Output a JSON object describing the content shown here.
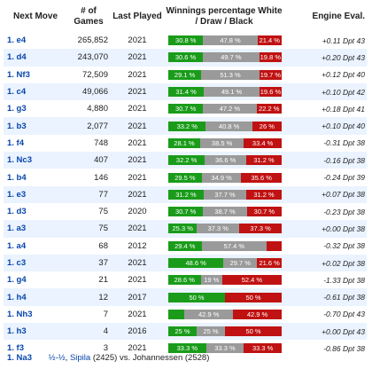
{
  "headers": {
    "move": "Next Move",
    "games": "# of Games",
    "last": "Last Played",
    "win": "Winnings percentage White / Draw / Black",
    "eval": "Engine Eval."
  },
  "colors": {
    "white": "#1a9c1a",
    "draw": "#9a9a9a",
    "black": "#c01212"
  },
  "rows": [
    {
      "move": "1. e4",
      "games": "265,852",
      "year": "2021",
      "w": 30.8,
      "d": 47.8,
      "b": 21.4,
      "wl": "30.8 %",
      "dl": "47.8 %",
      "bl": "21.4 %",
      "eval": "+0.11 Dpt 43"
    },
    {
      "move": "1. d4",
      "games": "243,070",
      "year": "2021",
      "w": 30.6,
      "d": 49.7,
      "b": 19.8,
      "wl": "30.6 %",
      "dl": "49.7 %",
      "bl": "19.8 %",
      "eval": "+0.20 Dpt 43"
    },
    {
      "move": "1. Nf3",
      "games": "72,509",
      "year": "2021",
      "w": 29.1,
      "d": 51.3,
      "b": 19.7,
      "wl": "29.1 %",
      "dl": "51.3 %",
      "bl": "19.7 %",
      "eval": "+0.12 Dpt 40"
    },
    {
      "move": "1. c4",
      "games": "49,066",
      "year": "2021",
      "w": 31.4,
      "d": 49.1,
      "b": 19.6,
      "wl": "31.4 %",
      "dl": "49.1 %",
      "bl": "19.6 %",
      "eval": "+0.10 Dpt 42"
    },
    {
      "move": "1. g3",
      "games": "4,880",
      "year": "2021",
      "w": 30.7,
      "d": 47.2,
      "b": 22.2,
      "wl": "30.7 %",
      "dl": "47.2 %",
      "bl": "22.2 %",
      "eval": "+0.18 Dpt 41"
    },
    {
      "move": "1. b3",
      "games": "2,077",
      "year": "2021",
      "w": 33.2,
      "d": 40.8,
      "b": 26,
      "wl": "33.2 %",
      "dl": "40.8 %",
      "bl": "26 %",
      "eval": "+0.10 Dpt 40"
    },
    {
      "move": "1. f4",
      "games": "748",
      "year": "2021",
      "w": 28.1,
      "d": 38.5,
      "b": 33.4,
      "wl": "28.1 %",
      "dl": "38.5 %",
      "bl": "33.4 %",
      "eval": "-0.31 Dpt 38"
    },
    {
      "move": "1. Nc3",
      "games": "407",
      "year": "2021",
      "w": 32.2,
      "d": 36.6,
      "b": 31.2,
      "wl": "32.2 %",
      "dl": "36.6 %",
      "bl": "31.2 %",
      "eval": "-0.16 Dpt 38"
    },
    {
      "move": "1. b4",
      "games": "146",
      "year": "2021",
      "w": 29.5,
      "d": 34.9,
      "b": 35.6,
      "wl": "29.5 %",
      "dl": "34.9 %",
      "bl": "35.6 %",
      "eval": "-0.24 Dpt 39"
    },
    {
      "move": "1. e3",
      "games": "77",
      "year": "2021",
      "w": 31.2,
      "d": 37.7,
      "b": 31.2,
      "wl": "31.2 %",
      "dl": "37.7 %",
      "bl": "31.2 %",
      "eval": "+0.07 Dpt 38"
    },
    {
      "move": "1. d3",
      "games": "75",
      "year": "2020",
      "w": 30.7,
      "d": 38.7,
      "b": 30.7,
      "wl": "30.7 %",
      "dl": "38.7 %",
      "bl": "30.7 %",
      "eval": "-0.23 Dpt 38"
    },
    {
      "move": "1. a3",
      "games": "75",
      "year": "2021",
      "w": 25.3,
      "d": 37.3,
      "b": 37.3,
      "wl": "25.3 %",
      "dl": "37.3 %",
      "bl": "37.3 %",
      "eval": "+0.00 Dpt 38"
    },
    {
      "move": "1. a4",
      "games": "68",
      "year": "2012",
      "w": 29.4,
      "d": 57.4,
      "b": 13.2,
      "wl": "29.4 %",
      "dl": "57.4 %",
      "bl": "",
      "eval": "-0.32 Dpt 38"
    },
    {
      "move": "1. c3",
      "games": "37",
      "year": "2021",
      "w": 48.6,
      "d": 29.7,
      "b": 21.6,
      "wl": "48.6 %",
      "dl": "29.7 %",
      "bl": "21.6 %",
      "eval": "+0.02 Dpt 38"
    },
    {
      "move": "1. g4",
      "games": "21",
      "year": "2021",
      "w": 28.6,
      "d": 19,
      "b": 52.4,
      "wl": "28.6 %",
      "dl": "19 %",
      "bl": "52.4 %",
      "eval": "-1.33 Dpt 38"
    },
    {
      "move": "1. h4",
      "games": "12",
      "year": "2017",
      "w": 50,
      "d": 0,
      "b": 50,
      "wl": "50 %",
      "dl": "",
      "bl": "50 %",
      "eval": "-0.61 Dpt 38"
    },
    {
      "move": "1. Nh3",
      "games": "7",
      "year": "2021",
      "w": 14.3,
      "d": 42.9,
      "b": 42.9,
      "wl": "",
      "dl": "42.9 %",
      "bl": "42.9 %",
      "eval": "-0.70 Dpt 43"
    },
    {
      "move": "1. h3",
      "games": "4",
      "year": "2016",
      "w": 25,
      "d": 25,
      "b": 50,
      "wl": "25 %",
      "dl": "25 %",
      "bl": "50 %",
      "eval": "+0.00 Dpt 43"
    },
    {
      "move": "1. f3",
      "games": "3",
      "year": "2021",
      "w": 33.3,
      "d": 33.3,
      "b": 33.3,
      "wl": "33.3 %",
      "dl": "33.3 %",
      "bl": "33.3 %",
      "eval": "-0.86 Dpt 38"
    }
  ],
  "footer": {
    "move": "1. Na3",
    "result": "½-½",
    "white_player": "Sipila",
    "white_rating": "(2425)",
    "vs": "vs.",
    "black_player": "Johannessen",
    "black_rating": "(2528)"
  }
}
